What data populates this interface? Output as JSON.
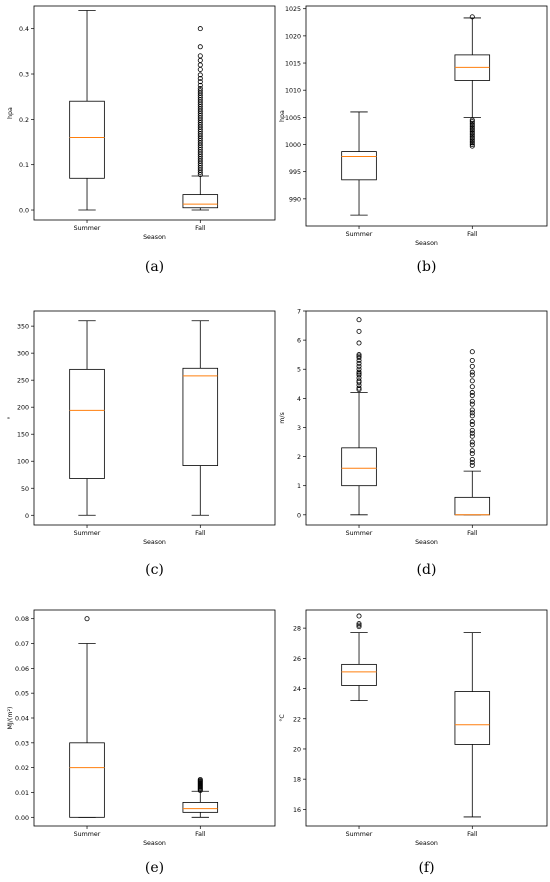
{
  "colors": {
    "median": "#ff7f0e",
    "box": "#000000",
    "frame": "#000000",
    "background": "#ffffff"
  },
  "chart_data": [
    {
      "type": "box",
      "label": "(a)",
      "xlabel": "Season",
      "ylabel": "hpa",
      "ylim": [
        -0.022,
        0.45
      ],
      "yticks": [
        0.0,
        0.1,
        0.2,
        0.3,
        0.4
      ],
      "ytick_labels": [
        "0.0",
        "0.1",
        "0.2",
        "0.3",
        "0.4"
      ],
      "categories": [
        "Summer",
        "Fall"
      ],
      "boxes": [
        {
          "name": "Summer",
          "whisker_low": 0.0,
          "q1": 0.07,
          "median": 0.16,
          "q3": 0.24,
          "whisker_high": 0.44,
          "outliers": []
        },
        {
          "name": "Fall",
          "whisker_low": 0.0,
          "q1": 0.005,
          "median": 0.013,
          "q3": 0.034,
          "whisker_high": 0.075,
          "outliers": [
            0.078,
            0.083,
            0.088,
            0.093,
            0.098,
            0.103,
            0.108,
            0.113,
            0.118,
            0.123,
            0.128,
            0.133,
            0.138,
            0.143,
            0.148,
            0.153,
            0.158,
            0.163,
            0.168,
            0.173,
            0.178,
            0.183,
            0.188,
            0.193,
            0.198,
            0.203,
            0.208,
            0.213,
            0.218,
            0.223,
            0.228,
            0.233,
            0.238,
            0.243,
            0.248,
            0.253,
            0.258,
            0.263,
            0.268,
            0.275,
            0.283,
            0.29,
            0.298,
            0.31,
            0.32,
            0.33,
            0.34,
            0.36,
            0.4
          ]
        }
      ]
    },
    {
      "type": "box",
      "label": "(b)",
      "xlabel": "Season",
      "ylabel": "hpa",
      "ylim": [
        985.0,
        1025.5
      ],
      "yticks": [
        990,
        995,
        1000,
        1005,
        1010,
        1015,
        1020,
        1025
      ],
      "ytick_labels": [
        "990",
        "995",
        "1000",
        "1005",
        "1010",
        "1015",
        "1020",
        "1025"
      ],
      "categories": [
        "Summer",
        "Fall"
      ],
      "boxes": [
        {
          "name": "Summer",
          "whisker_low": 987.0,
          "q1": 993.5,
          "median": 997.8,
          "q3": 998.7,
          "whisker_high": 1006.0,
          "outliers": []
        },
        {
          "name": "Fall",
          "whisker_low": 1005.0,
          "q1": 1011.8,
          "median": 1014.2,
          "q3": 1016.5,
          "whisker_high": 1023.3,
          "outliers": [
            999.7,
            1000.0,
            1000.3,
            1000.6,
            1000.9,
            1001.2,
            1001.5,
            1001.8,
            1002.1,
            1002.4,
            1002.7,
            1003.0,
            1003.3,
            1003.6,
            1003.9,
            1004.2,
            1004.5,
            1023.5
          ]
        }
      ]
    },
    {
      "type": "box",
      "label": "(c)",
      "xlabel": "Season",
      "ylabel": "°",
      "ylim": [
        -18,
        378
      ],
      "yticks": [
        0,
        50,
        100,
        150,
        200,
        250,
        300,
        350
      ],
      "ytick_labels": [
        "0",
        "50",
        "100",
        "150",
        "200",
        "250",
        "300",
        "350"
      ],
      "categories": [
        "Summer",
        "Fall"
      ],
      "boxes": [
        {
          "name": "Summer",
          "whisker_low": 0,
          "q1": 68,
          "median": 194,
          "q3": 270,
          "whisker_high": 360,
          "outliers": []
        },
        {
          "name": "Fall",
          "whisker_low": 0,
          "q1": 92,
          "median": 258,
          "q3": 272,
          "whisker_high": 360,
          "outliers": []
        }
      ]
    },
    {
      "type": "box",
      "label": "(d)",
      "xlabel": "Season",
      "ylabel": "m/s",
      "ylim": [
        -0.35,
        7.0
      ],
      "yticks": [
        0,
        1,
        2,
        3,
        4,
        5,
        6,
        7
      ],
      "ytick_labels": [
        "0",
        "1",
        "2",
        "3",
        "4",
        "5",
        "6",
        "7"
      ],
      "categories": [
        "Summer",
        "Fall"
      ],
      "boxes": [
        {
          "name": "Summer",
          "whisker_low": 0.0,
          "q1": 1.0,
          "median": 1.6,
          "q3": 2.3,
          "whisker_high": 4.2,
          "outliers": [
            4.3,
            4.35,
            4.45,
            4.55,
            4.6,
            4.7,
            4.8,
            4.85,
            4.9,
            5.0,
            5.1,
            5.2,
            5.3,
            5.4,
            5.45,
            5.5,
            5.9,
            6.3,
            6.7
          ]
        },
        {
          "name": "Fall",
          "whisker_low": 0.0,
          "q1": 0.0,
          "median": 0.0,
          "q3": 0.6,
          "whisker_high": 1.5,
          "outliers": [
            1.7,
            1.8,
            1.9,
            2.1,
            2.2,
            2.4,
            2.5,
            2.7,
            2.8,
            2.9,
            3.1,
            3.2,
            3.4,
            3.5,
            3.6,
            3.8,
            3.9,
            4.1,
            4.2,
            4.4,
            4.6,
            4.8,
            4.9,
            5.1,
            5.3,
            5.6
          ]
        }
      ]
    },
    {
      "type": "box",
      "label": "(e)",
      "xlabel": "Season",
      "ylabel": "MJ/(m²)",
      "ylim": [
        -0.0035,
        0.0835
      ],
      "yticks": [
        0.0,
        0.01,
        0.02,
        0.03,
        0.04,
        0.05,
        0.06,
        0.07,
        0.08
      ],
      "ytick_labels": [
        "0.00",
        "0.01",
        "0.02",
        "0.03",
        "0.04",
        "0.05",
        "0.06",
        "0.07",
        "0.08"
      ],
      "categories": [
        "Summer",
        "Fall"
      ],
      "boxes": [
        {
          "name": "Summer",
          "whisker_low": 0.0,
          "q1": 0.0,
          "median": 0.02,
          "q3": 0.03,
          "whisker_high": 0.07,
          "outliers": [
            0.08
          ]
        },
        {
          "name": "Fall",
          "whisker_low": 0.0,
          "q1": 0.002,
          "median": 0.0035,
          "q3": 0.006,
          "whisker_high": 0.0105,
          "outliers": [
            0.0108,
            0.0112,
            0.0116,
            0.012,
            0.0124,
            0.0128,
            0.0132,
            0.0136,
            0.014,
            0.0144,
            0.0148,
            0.0152
          ]
        }
      ]
    },
    {
      "type": "box",
      "label": "(f)",
      "xlabel": "Season",
      "ylabel": "°C",
      "ylim": [
        14.9,
        29.2
      ],
      "yticks": [
        16,
        18,
        20,
        22,
        24,
        26,
        28
      ],
      "ytick_labels": [
        "16",
        "18",
        "20",
        "22",
        "24",
        "26",
        "28"
      ],
      "categories": [
        "Summer",
        "Fall"
      ],
      "boxes": [
        {
          "name": "Summer",
          "whisker_low": 23.2,
          "q1": 24.2,
          "median": 25.1,
          "q3": 25.6,
          "whisker_high": 27.7,
          "outliers": [
            28.1,
            28.2,
            28.3,
            28.8
          ]
        },
        {
          "name": "Fall",
          "whisker_low": 15.5,
          "q1": 20.3,
          "median": 21.6,
          "q3": 23.8,
          "whisker_high": 27.7,
          "outliers": []
        }
      ]
    }
  ]
}
